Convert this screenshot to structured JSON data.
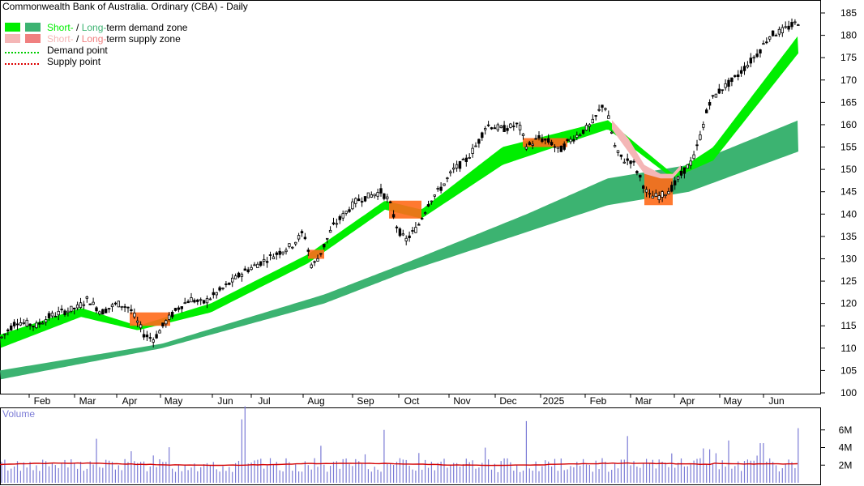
{
  "chart_data": {
    "type": "candlestick",
    "title": "Commonwealth Bank of Australia. Ordinary (CBA) - Daily",
    "legend": [
      {
        "label_parts": [
          "Short-",
          " / ",
          "Long-",
          "term demand zone"
        ],
        "colors": [
          "#00ee00",
          "#3cb371"
        ]
      },
      {
        "label_parts": [
          "Short-",
          " / ",
          "Long-",
          "term supply zone"
        ],
        "colors": [
          "#f4b6b6",
          "#f08080"
        ]
      },
      {
        "label_parts": [
          "Demand point"
        ],
        "colors": [
          "#00cc00"
        ],
        "style": "dotted"
      },
      {
        "label_parts": [
          "Supply point"
        ],
        "colors": [
          "#dd0000"
        ],
        "style": "dotted"
      }
    ],
    "x_ticks": [
      "Feb",
      "Mar",
      "Apr",
      "May",
      "Jun",
      "Jul",
      "Aug",
      "Sep",
      "Oct",
      "Nov",
      "Dec",
      "2025",
      "Feb",
      "Mar",
      "Apr",
      "May",
      "Jun"
    ],
    "y_ticks": [
      100,
      105,
      110,
      115,
      120,
      125,
      130,
      135,
      140,
      145,
      150,
      155,
      160,
      165,
      170,
      175,
      180,
      185
    ],
    "ylim": [
      98,
      188
    ],
    "price_anchor_points": [
      [
        0,
        112
      ],
      [
        20,
        116
      ],
      [
        45,
        115
      ],
      [
        60,
        117
      ],
      [
        75,
        118
      ],
      [
        95,
        119
      ],
      [
        108,
        121
      ],
      [
        125,
        118
      ],
      [
        145,
        120
      ],
      [
        160,
        119
      ],
      [
        178,
        113
      ],
      [
        190,
        112
      ],
      [
        205,
        116
      ],
      [
        220,
        119
      ],
      [
        235,
        121
      ],
      [
        250,
        120
      ],
      [
        265,
        122
      ],
      [
        280,
        124
      ],
      [
        300,
        127
      ],
      [
        320,
        129
      ],
      [
        340,
        131
      ],
      [
        360,
        133
      ],
      [
        375,
        136
      ],
      [
        385,
        128
      ],
      [
        395,
        131
      ],
      [
        410,
        137
      ],
      [
        425,
        140
      ],
      [
        440,
        143
      ],
      [
        455,
        144
      ],
      [
        470,
        145
      ],
      [
        480,
        143
      ],
      [
        490,
        137
      ],
      [
        500,
        134
      ],
      [
        515,
        137
      ],
      [
        530,
        143
      ],
      [
        545,
        146
      ],
      [
        560,
        150
      ],
      [
        575,
        152
      ],
      [
        590,
        156
      ],
      [
        600,
        160
      ],
      [
        620,
        159
      ],
      [
        640,
        160
      ],
      [
        650,
        155
      ],
      [
        665,
        157
      ],
      [
        680,
        156
      ],
      [
        690,
        154
      ],
      [
        700,
        156
      ],
      [
        715,
        158
      ],
      [
        730,
        160
      ],
      [
        745,
        165
      ],
      [
        750,
        162
      ],
      [
        760,
        154
      ],
      [
        770,
        152
      ],
      [
        780,
        152
      ],
      [
        790,
        148
      ],
      [
        800,
        144
      ],
      [
        815,
        144
      ],
      [
        830,
        146
      ],
      [
        845,
        150
      ],
      [
        855,
        152
      ],
      [
        865,
        158
      ],
      [
        875,
        165
      ],
      [
        890,
        168
      ],
      [
        905,
        170
      ],
      [
        920,
        173
      ],
      [
        935,
        176
      ],
      [
        950,
        180
      ],
      [
        965,
        181
      ],
      [
        975,
        182
      ],
      [
        985,
        183
      ]
    ],
    "short_term_demand_upper": [
      [
        0,
        113
      ],
      [
        100,
        119
      ],
      [
        170,
        115
      ],
      [
        260,
        120
      ],
      [
        380,
        131
      ],
      [
        475,
        143
      ],
      [
        520,
        141
      ],
      [
        620,
        155
      ],
      [
        750,
        161
      ],
      [
        830,
        149
      ],
      [
        880,
        155
      ],
      [
        985,
        180
      ]
    ],
    "short_term_demand_lower": [
      [
        0,
        110
      ],
      [
        100,
        117
      ],
      [
        170,
        114
      ],
      [
        260,
        118
      ],
      [
        380,
        129
      ],
      [
        475,
        141
      ],
      [
        520,
        139
      ],
      [
        620,
        151
      ],
      [
        750,
        159
      ],
      [
        830,
        148
      ],
      [
        880,
        152
      ],
      [
        985,
        176
      ]
    ],
    "long_term_demand_upper": [
      [
        0,
        105
      ],
      [
        200,
        111
      ],
      [
        400,
        122
      ],
      [
        500,
        129
      ],
      [
        650,
        140
      ],
      [
        750,
        148
      ],
      [
        850,
        151
      ],
      [
        985,
        161
      ]
    ],
    "long_term_demand_lower": [
      [
        0,
        103
      ],
      [
        200,
        110
      ],
      [
        400,
        120
      ],
      [
        500,
        127
      ],
      [
        650,
        136
      ],
      [
        750,
        142
      ],
      [
        850,
        145
      ],
      [
        985,
        154
      ]
    ],
    "supply_zones": [
      {
        "x": [
          160,
          210
        ],
        "y": [
          115,
          118
        ]
      },
      {
        "x": [
          380,
          400
        ],
        "y": [
          130,
          132
        ]
      },
      {
        "x": [
          480,
          520
        ],
        "y": [
          139,
          143
        ]
      },
      {
        "x": [
          645,
          700
        ],
        "y": [
          155,
          157
        ]
      },
      {
        "x": [
          795,
          830
        ],
        "y": [
          142,
          149
        ]
      }
    ],
    "volume": {
      "label": "Volume",
      "y_ticks": [
        "2M",
        "4M",
        "6M"
      ],
      "ylim": [
        0,
        8
      ],
      "average": 2.1,
      "spikes": [
        [
          300,
          7.2
        ],
        [
          475,
          6.0
        ],
        [
          650,
          7.0
        ],
        [
          775,
          5.3
        ],
        [
          900,
          4.8
        ],
        [
          940,
          4.5
        ],
        [
          985,
          6.2
        ],
        [
          120,
          5.0
        ],
        [
          395,
          4.2
        ]
      ]
    }
  }
}
